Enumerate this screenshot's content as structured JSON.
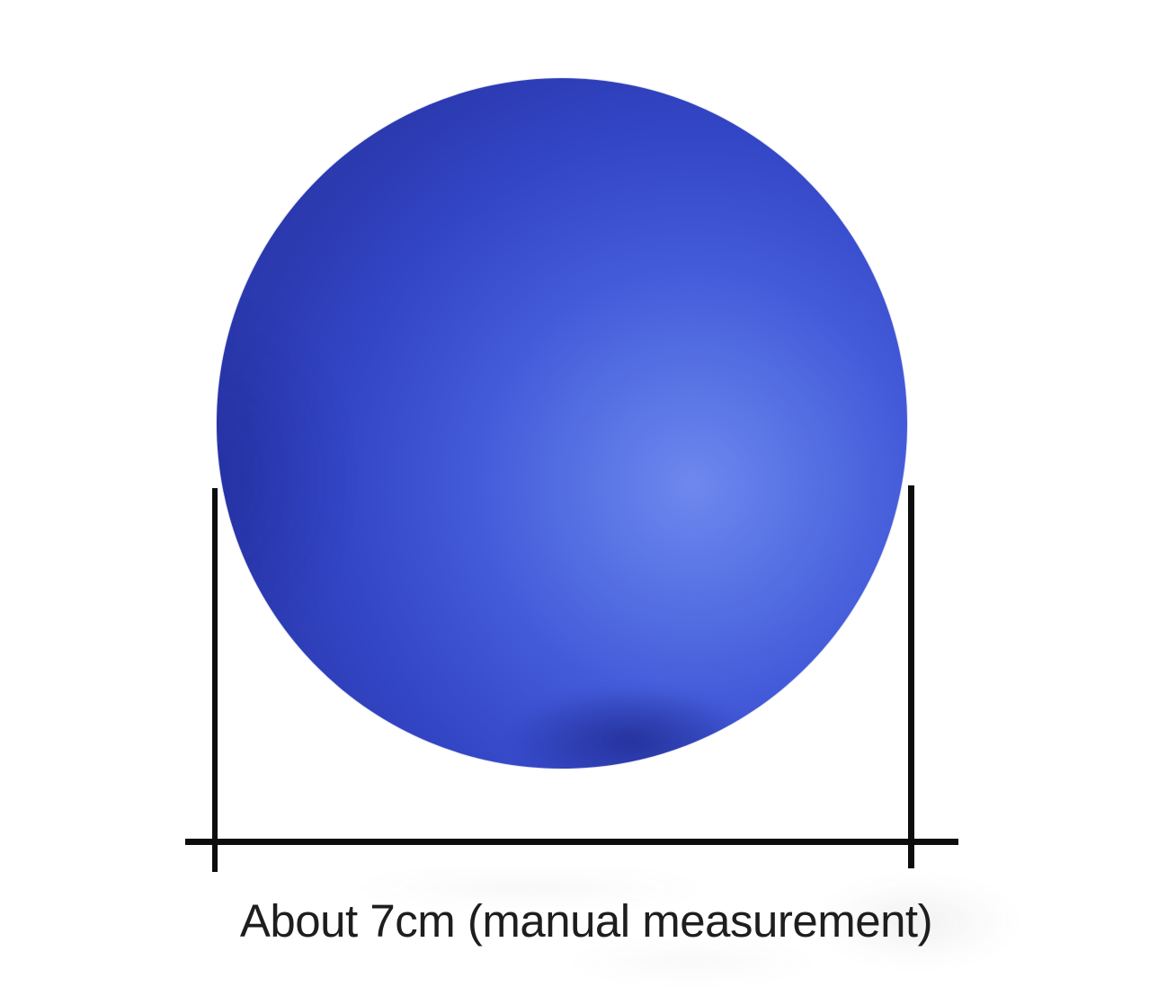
{
  "annotation": {
    "caption": "About 7cm (manual measurement)"
  },
  "image": {
    "subject": "blue-ball",
    "measurement_span": "diameter"
  },
  "colors": {
    "background": "#ffffff",
    "ball-highlight": "#6e88ee",
    "ball-edge": "#2b38ac",
    "line": "#0d0d0d",
    "caption": "#1e1e1e"
  }
}
